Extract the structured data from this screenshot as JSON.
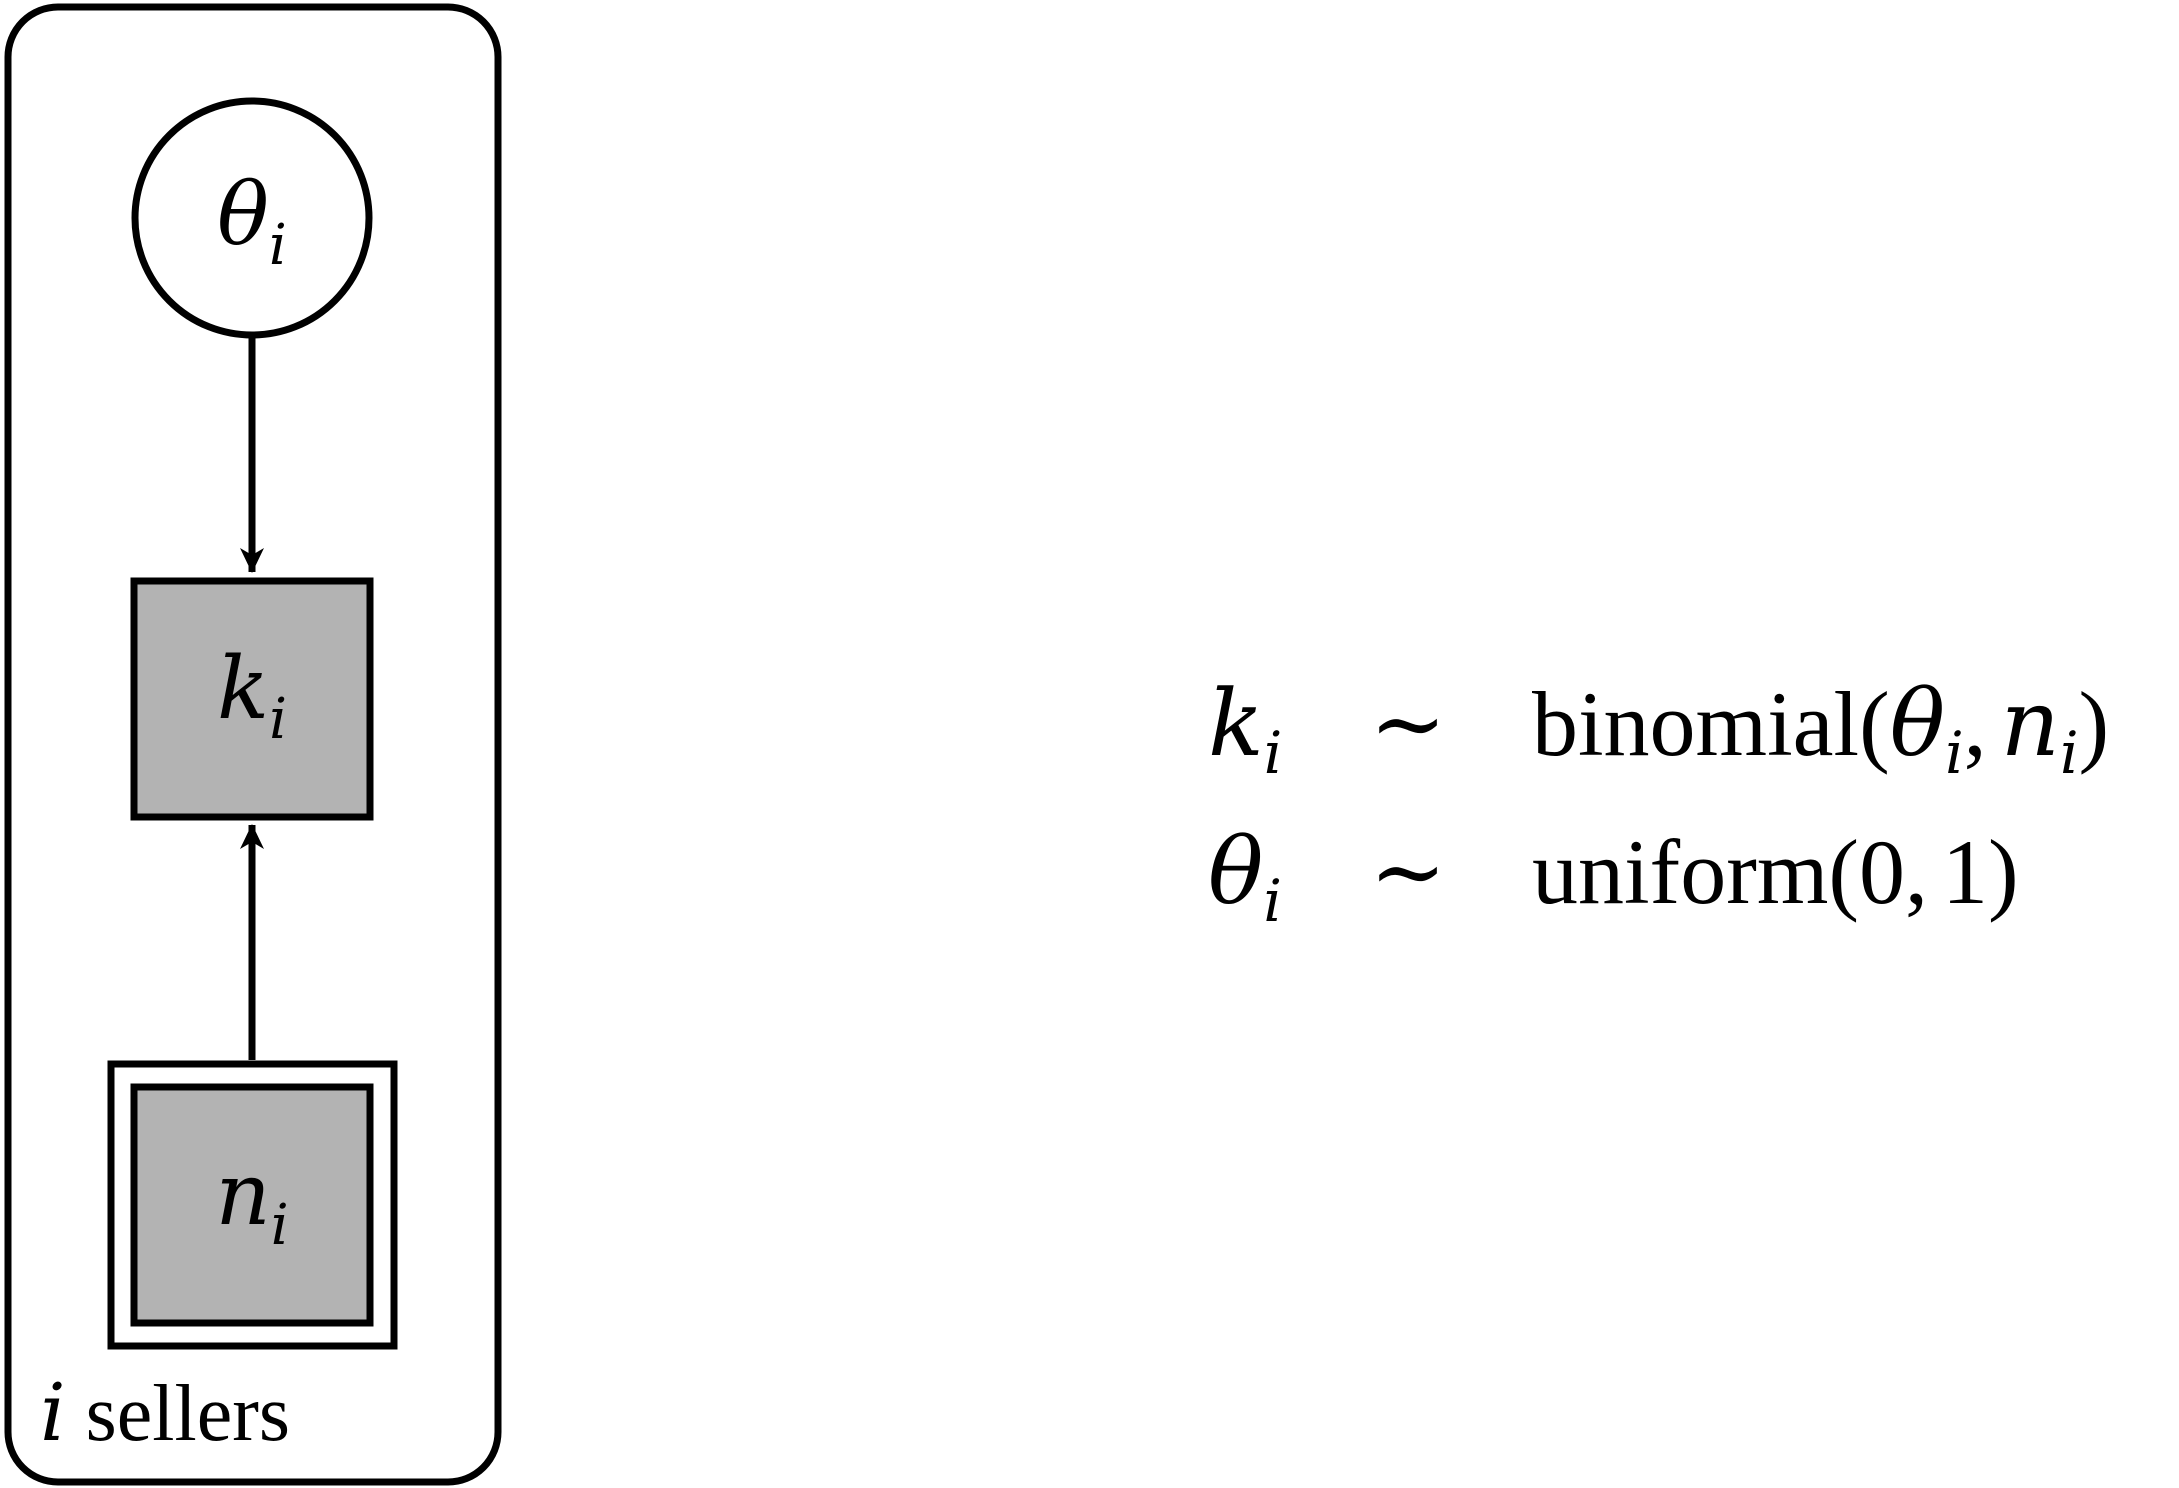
{
  "colors": {
    "stroke": "#000000",
    "observed_fill": "#b3b3b3",
    "latent_fill": "#ffffff",
    "background": "#ffffff"
  },
  "plate": {
    "index": "i",
    "label": "sellers"
  },
  "nodes": {
    "theta": {
      "symbol": "θ",
      "subscript": "i",
      "shape": "circle",
      "observed": false
    },
    "k": {
      "symbol": "k",
      "subscript": "i",
      "shape": "square",
      "observed": true
    },
    "n": {
      "symbol": "n",
      "subscript": "i",
      "shape": "double-square",
      "observed": true
    }
  },
  "edges": [
    {
      "from": "theta",
      "to": "k"
    },
    {
      "from": "n",
      "to": "k"
    }
  ],
  "equations": [
    {
      "lhs_symbol": "k",
      "lhs_sub": "i",
      "relation": "∼",
      "dist": "binomial",
      "open": "(",
      "arg1_symbol": "θ",
      "arg1_sub": "i",
      "comma": ",",
      "arg2_symbol": "n",
      "arg2_sub": "i",
      "close": ")"
    },
    {
      "lhs_symbol": "θ",
      "lhs_sub": "i",
      "relation": "∼",
      "dist": "uniform",
      "open": "(",
      "arg1": "0",
      "comma": ",",
      "arg2": "1",
      "close": ")"
    }
  ]
}
